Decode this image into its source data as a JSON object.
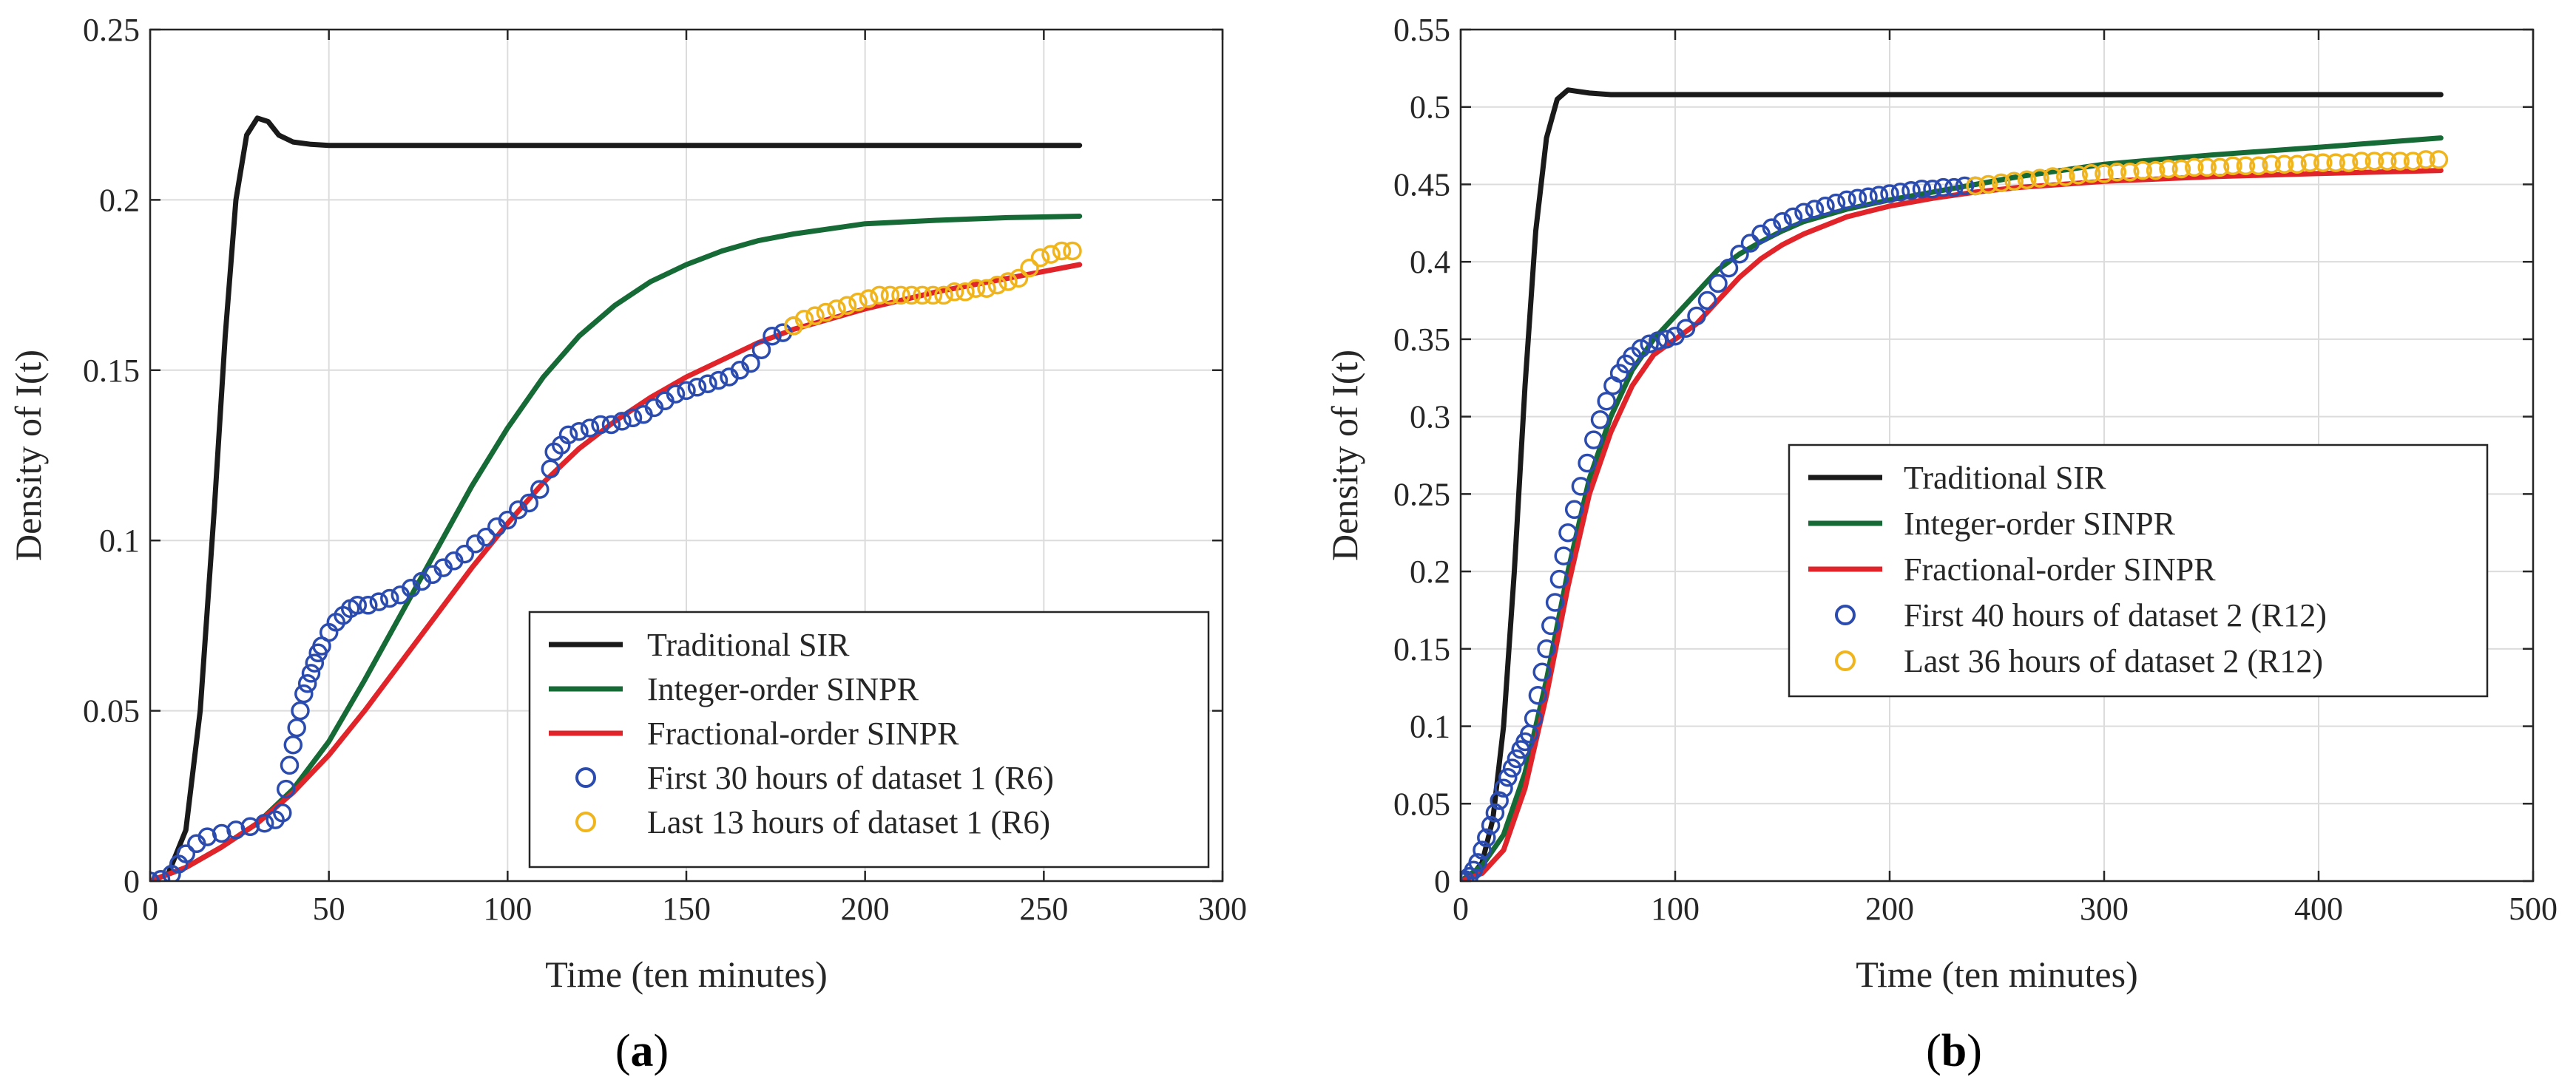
{
  "chart_data": [
    {
      "type": "line",
      "panel": "a",
      "xlabel": "Time (ten minutes)",
      "ylabel": "Density of I(t)",
      "xlim": [
        0,
        300
      ],
      "ylim": [
        0,
        0.25
      ],
      "xticks": [
        0,
        50,
        100,
        150,
        200,
        250,
        300
      ],
      "yticks": [
        0,
        0.05,
        0.1,
        0.15,
        0.2,
        0.25
      ],
      "xtick_labels": [
        "0",
        "50",
        "100",
        "150",
        "200",
        "250",
        "300"
      ],
      "ytick_labels": [
        "0",
        "0.05",
        "0.1",
        "0.15",
        "0.2",
        "0.25"
      ],
      "grid": true,
      "legend_position": "bottom-right",
      "series": [
        {
          "name": "Traditional SIR",
          "kind": "line",
          "color": "#1a1a1a",
          "x": [
            0,
            5,
            10,
            14,
            18,
            21,
            24,
            27,
            30,
            33,
            36,
            40,
            45,
            50,
            60,
            100,
            150,
            200,
            260
          ],
          "y": [
            0,
            0.002,
            0.015,
            0.05,
            0.11,
            0.16,
            0.2,
            0.219,
            0.224,
            0.223,
            0.219,
            0.217,
            0.2163,
            0.216,
            0.216,
            0.216,
            0.216,
            0.216,
            0.216
          ]
        },
        {
          "name": "Integer-order SINPR",
          "kind": "line",
          "color": "#156a35",
          "x": [
            0,
            10,
            20,
            30,
            40,
            50,
            60,
            70,
            80,
            90,
            100,
            110,
            120,
            130,
            140,
            150,
            160,
            170,
            180,
            200,
            220,
            240,
            260
          ],
          "y": [
            0,
            0.004,
            0.01,
            0.017,
            0.027,
            0.041,
            0.059,
            0.078,
            0.097,
            0.116,
            0.133,
            0.148,
            0.16,
            0.169,
            0.176,
            0.181,
            0.185,
            0.188,
            0.19,
            0.193,
            0.194,
            0.1948,
            0.1952
          ]
        },
        {
          "name": "Fractional-order SINPR",
          "kind": "line",
          "color": "#e0242a",
          "x": [
            0,
            10,
            20,
            30,
            40,
            50,
            60,
            70,
            80,
            90,
            100,
            110,
            120,
            130,
            140,
            150,
            160,
            170,
            180,
            190,
            200,
            220,
            240,
            260
          ],
          "y": [
            0,
            0.004,
            0.01,
            0.017,
            0.026,
            0.037,
            0.05,
            0.064,
            0.078,
            0.092,
            0.105,
            0.117,
            0.127,
            0.135,
            0.142,
            0.148,
            0.153,
            0.158,
            0.162,
            0.165,
            0.168,
            0.173,
            0.177,
            0.181
          ]
        },
        {
          "name": "First 30 hours of dataset 1 (R6)",
          "kind": "scatter",
          "color": "#2b4cae",
          "x": [
            0,
            3,
            6,
            8,
            10,
            13,
            16,
            20,
            24,
            28,
            32,
            35,
            37,
            38,
            39,
            40,
            41,
            42,
            43,
            44,
            45,
            46,
            47,
            48,
            50,
            52,
            54,
            56,
            58,
            61,
            64,
            67,
            70,
            73,
            76,
            79,
            82,
            85,
            88,
            91,
            94,
            97,
            100,
            103,
            106,
            109,
            112,
            113,
            115,
            117,
            120,
            123,
            126,
            129,
            132,
            135,
            138,
            141,
            144,
            147,
            150,
            153,
            156,
            159,
            162,
            165,
            168,
            171,
            174,
            177,
            180
          ],
          "y": [
            0,
            0.0005,
            0.002,
            0.005,
            0.008,
            0.011,
            0.013,
            0.014,
            0.015,
            0.016,
            0.017,
            0.018,
            0.02,
            0.027,
            0.034,
            0.04,
            0.045,
            0.05,
            0.055,
            0.058,
            0.061,
            0.064,
            0.067,
            0.069,
            0.073,
            0.076,
            0.078,
            0.08,
            0.081,
            0.081,
            0.082,
            0.083,
            0.084,
            0.086,
            0.088,
            0.09,
            0.092,
            0.094,
            0.096,
            0.099,
            0.101,
            0.104,
            0.106,
            0.109,
            0.111,
            0.115,
            0.121,
            0.126,
            0.128,
            0.131,
            0.132,
            0.133,
            0.134,
            0.134,
            0.135,
            0.136,
            0.137,
            0.139,
            0.141,
            0.143,
            0.144,
            0.145,
            0.146,
            0.147,
            0.148,
            0.15,
            0.152,
            0.156,
            0.16,
            0.161,
            0.163
          ]
        },
        {
          "name": "Last 13 hours of dataset 1 (R6)",
          "kind": "scatter",
          "color": "#f0b41c",
          "x": [
            180,
            183,
            186,
            189,
            192,
            195,
            198,
            201,
            204,
            207,
            210,
            213,
            216,
            219,
            222,
            225,
            228,
            231,
            234,
            237,
            240,
            243,
            246,
            249,
            252,
            255,
            258
          ],
          "y": [
            0.163,
            0.165,
            0.166,
            0.167,
            0.168,
            0.169,
            0.17,
            0.171,
            0.172,
            0.172,
            0.172,
            0.172,
            0.172,
            0.172,
            0.172,
            0.173,
            0.173,
            0.174,
            0.174,
            0.175,
            0.176,
            0.177,
            0.18,
            0.183,
            0.184,
            0.185,
            0.185
          ]
        }
      ]
    },
    {
      "type": "line",
      "panel": "b",
      "xlabel": "Time (ten minutes)",
      "ylabel": "Density of I(t)",
      "xlim": [
        0,
        500
      ],
      "ylim": [
        0,
        0.55
      ],
      "xticks": [
        0,
        100,
        200,
        300,
        400,
        500
      ],
      "yticks": [
        0,
        0.05,
        0.1,
        0.15,
        0.2,
        0.25,
        0.3,
        0.35,
        0.4,
        0.45,
        0.5,
        0.55
      ],
      "xtick_labels": [
        "0",
        "100",
        "200",
        "300",
        "400",
        "500"
      ],
      "ytick_labels": [
        "0",
        "0.05",
        "0.1",
        "0.15",
        "0.2",
        "0.25",
        "0.3",
        "0.35",
        "0.4",
        "0.45",
        "0.5",
        "0.55"
      ],
      "grid": true,
      "legend_position": "center-right",
      "series": [
        {
          "name": "Traditional SIR",
          "kind": "line",
          "color": "#1a1a1a",
          "x": [
            0,
            5,
            10,
            15,
            20,
            25,
            30,
            35,
            40,
            45,
            50,
            55,
            60,
            70,
            100,
            200,
            300,
            400,
            457
          ],
          "y": [
            0,
            0.003,
            0.012,
            0.04,
            0.1,
            0.2,
            0.32,
            0.42,
            0.48,
            0.505,
            0.511,
            0.51,
            0.509,
            0.508,
            0.508,
            0.508,
            0.508,
            0.508,
            0.508
          ]
        },
        {
          "name": "Integer-order SINPR",
          "kind": "line",
          "color": "#156a35",
          "x": [
            0,
            10,
            20,
            30,
            40,
            50,
            60,
            70,
            80,
            90,
            100,
            110,
            120,
            130,
            140,
            150,
            160,
            180,
            200,
            220,
            240,
            260,
            280,
            300,
            350,
            400,
            457
          ],
          "y": [
            0,
            0.01,
            0.03,
            0.07,
            0.13,
            0.2,
            0.26,
            0.3,
            0.33,
            0.35,
            0.365,
            0.38,
            0.395,
            0.405,
            0.413,
            0.42,
            0.426,
            0.434,
            0.44,
            0.445,
            0.45,
            0.455,
            0.459,
            0.463,
            0.469,
            0.474,
            0.48
          ]
        },
        {
          "name": "Fractional-order SINPR",
          "kind": "line",
          "color": "#e0242a",
          "x": [
            0,
            10,
            20,
            30,
            40,
            50,
            60,
            70,
            80,
            90,
            100,
            110,
            120,
            130,
            140,
            150,
            160,
            180,
            200,
            220,
            240,
            260,
            280,
            300,
            350,
            400,
            457
          ],
          "y": [
            0,
            0.005,
            0.02,
            0.06,
            0.12,
            0.19,
            0.25,
            0.29,
            0.32,
            0.34,
            0.35,
            0.36,
            0.375,
            0.39,
            0.402,
            0.411,
            0.418,
            0.429,
            0.436,
            0.441,
            0.445,
            0.448,
            0.45,
            0.452,
            0.455,
            0.457,
            0.459
          ]
        },
        {
          "name": "First 40 hours of dataset 2 (R12)",
          "kind": "scatter",
          "color": "#2b4cae",
          "x": [
            0,
            2,
            4,
            6,
            8,
            10,
            12,
            14,
            16,
            18,
            20,
            22,
            24,
            26,
            28,
            30,
            32,
            34,
            36,
            38,
            40,
            42,
            44,
            46,
            48,
            50,
            53,
            56,
            59,
            62,
            65,
            68,
            71,
            74,
            77,
            80,
            84,
            88,
            92,
            96,
            100,
            105,
            110,
            115,
            120,
            125,
            130,
            135,
            140,
            145,
            150,
            155,
            160,
            165,
            170,
            175,
            180,
            185,
            190,
            195,
            200,
            205,
            210,
            215,
            220,
            225,
            230,
            235,
            240
          ],
          "y": [
            0,
            0.001,
            0.003,
            0.007,
            0.012,
            0.02,
            0.028,
            0.036,
            0.044,
            0.052,
            0.06,
            0.067,
            0.073,
            0.079,
            0.085,
            0.09,
            0.095,
            0.105,
            0.12,
            0.135,
            0.15,
            0.165,
            0.18,
            0.195,
            0.21,
            0.225,
            0.24,
            0.255,
            0.27,
            0.285,
            0.298,
            0.31,
            0.32,
            0.328,
            0.334,
            0.339,
            0.344,
            0.347,
            0.349,
            0.35,
            0.352,
            0.357,
            0.365,
            0.375,
            0.386,
            0.396,
            0.405,
            0.412,
            0.418,
            0.422,
            0.426,
            0.429,
            0.432,
            0.434,
            0.436,
            0.438,
            0.44,
            0.441,
            0.442,
            0.443,
            0.444,
            0.445,
            0.446,
            0.447,
            0.447,
            0.448,
            0.448,
            0.449,
            0.449
          ]
        },
        {
          "name": "Last 36 hours of dataset 2 (R12)",
          "kind": "scatter",
          "color": "#f0b41c",
          "x": [
            240,
            246,
            252,
            258,
            264,
            270,
            276,
            282,
            288,
            294,
            300,
            306,
            312,
            318,
            324,
            330,
            336,
            342,
            348,
            354,
            360,
            366,
            372,
            378,
            384,
            390,
            396,
            402,
            408,
            414,
            420,
            426,
            432,
            438,
            444,
            450,
            456
          ],
          "y": [
            0.449,
            0.45,
            0.451,
            0.452,
            0.453,
            0.454,
            0.455,
            0.455,
            0.456,
            0.457,
            0.457,
            0.458,
            0.458,
            0.459,
            0.459,
            0.46,
            0.46,
            0.461,
            0.461,
            0.461,
            0.462,
            0.462,
            0.462,
            0.463,
            0.463,
            0.463,
            0.464,
            0.464,
            0.464,
            0.464,
            0.465,
            0.465,
            0.465,
            0.465,
            0.465,
            0.466,
            0.466
          ]
        }
      ]
    }
  ],
  "captions": [
    {
      "open": "(",
      "letter": "a",
      "close": ")"
    },
    {
      "open": "(",
      "letter": "b",
      "close": ")"
    }
  ]
}
